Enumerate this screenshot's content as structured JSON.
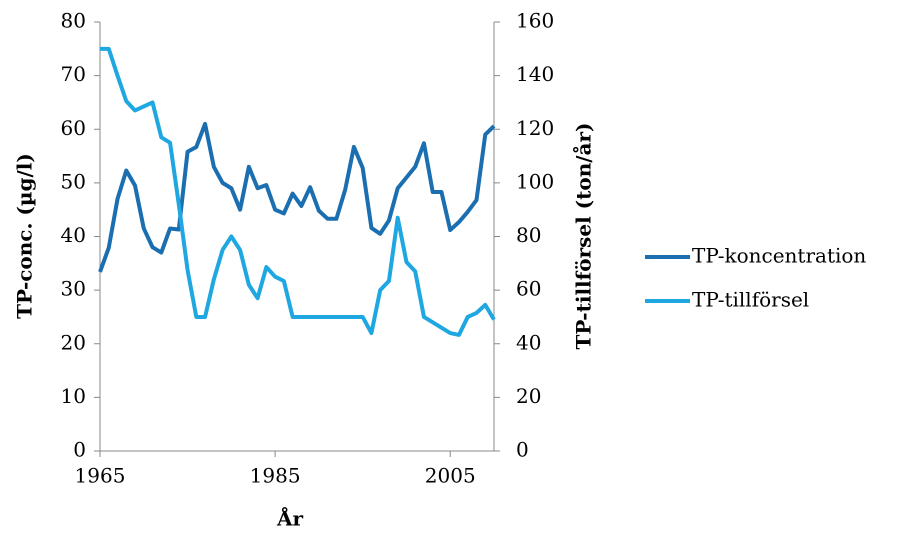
{
  "chart_data": {
    "type": "line",
    "xlabel": "År",
    "ylabel": "TP-conc. (µg/l)",
    "y2label": "TP-tillförsel (ton/år)",
    "x": [
      1965,
      1966,
      1967,
      1968,
      1969,
      1970,
      1971,
      1972,
      1973,
      1974,
      1975,
      1976,
      1977,
      1978,
      1979,
      1980,
      1981,
      1982,
      1983,
      1984,
      1985,
      1986,
      1987,
      1988,
      1989,
      1990,
      1991,
      1992,
      1993,
      1994,
      1995,
      1996,
      1997,
      1998,
      1999,
      2000,
      2001,
      2002,
      2003,
      2004,
      2005,
      2006,
      2007,
      2008,
      2009,
      2010
    ],
    "series": [
      {
        "name": "TP-koncentration",
        "color": "#1b6fb0",
        "axis": "y",
        "values": [
          33.4,
          37.9,
          47,
          52.3,
          49.5,
          41.5,
          38,
          37,
          41.5,
          41.3,
          55.8,
          56.7,
          61,
          53,
          50,
          49,
          45,
          53,
          49,
          49.6,
          45,
          44.3,
          48,
          45.7,
          49.2,
          44.8,
          43.3,
          43.3,
          48.7,
          56.7,
          52.8,
          41.6,
          40.5,
          43,
          49,
          51,
          53,
          57.4,
          48.3,
          48.3,
          41.2,
          42.7,
          44.6,
          46.8,
          59,
          60.6
        ]
      },
      {
        "name": "TP-tillförsel",
        "color": "#1ea7e1",
        "axis": "y2",
        "values": [
          150,
          150,
          140,
          130.5,
          127,
          128.5,
          130,
          117,
          115,
          92,
          67.5,
          50,
          50,
          64,
          75,
          80,
          75,
          62,
          57,
          68.6,
          65,
          63.4,
          50,
          50,
          50,
          50,
          50,
          50,
          50,
          50,
          50,
          44,
          60,
          63.4,
          87,
          70.5,
          67,
          50,
          48,
          46,
          44,
          43.3,
          50,
          51.5,
          54.5,
          49
        ]
      }
    ],
    "xlim": [
      1965,
      2010
    ],
    "xticks": [
      1965,
      1985,
      2005
    ],
    "ylim": [
      0,
      80
    ],
    "yticks": [
      0,
      10,
      20,
      30,
      40,
      50,
      60,
      70,
      80
    ],
    "y2lim": [
      0,
      160
    ],
    "y2ticks": [
      0,
      20,
      40,
      60,
      80,
      100,
      120,
      140,
      160
    ],
    "legend": "right",
    "grid": false
  }
}
